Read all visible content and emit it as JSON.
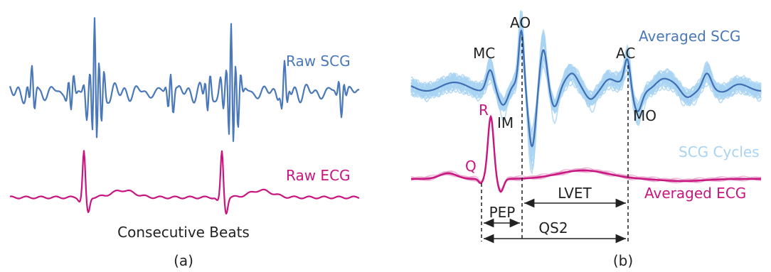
{
  "colors": {
    "scg": "#4a78b8",
    "ecg": "#c8157f",
    "scg_light": "#a9d3f2",
    "scg_cycles_text": "#a9d3f2",
    "text": "#222222"
  },
  "panel_a": {
    "raw_scg_label": "Raw SCG",
    "raw_ecg_label": "Raw ECG",
    "caption_beats": "Consecutive Beats",
    "panel_label": "(a)"
  },
  "panel_b": {
    "averaged_scg_label": "Averaged SCG",
    "scg_cycles_label": "SCG Cycles",
    "averaged_ecg_label": "Averaged ECG",
    "points": {
      "mc": "MC",
      "ao": "AO",
      "ac": "AC",
      "im": "IM",
      "mo": "MO",
      "r": "R",
      "q": "Q"
    },
    "intervals": {
      "pep": "PEP",
      "lvet": "LVET",
      "qs2": "QS2"
    },
    "panel_label": "(b)"
  }
}
